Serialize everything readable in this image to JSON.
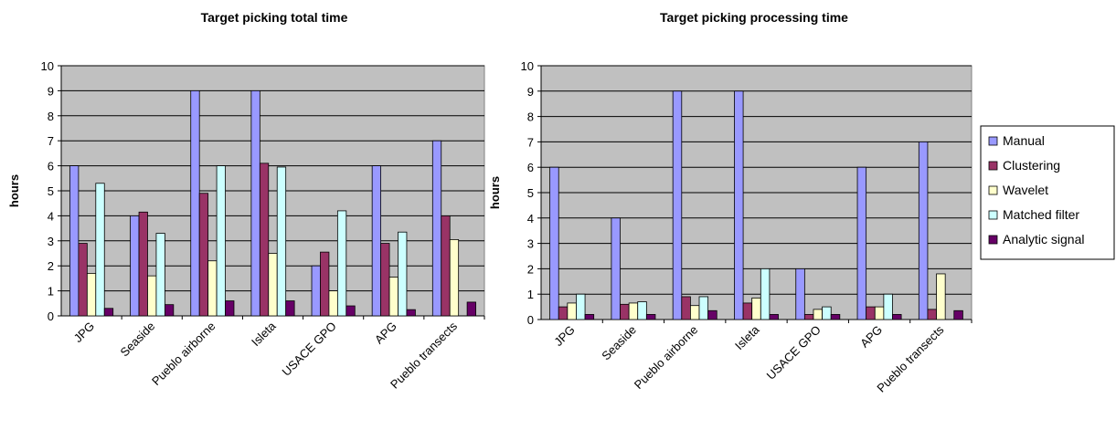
{
  "chart_data": [
    {
      "type": "bar",
      "title": "Target picking total time",
      "xlabel": "",
      "ylabel": "hours",
      "ylim": [
        0,
        10
      ],
      "yticks": [
        0,
        1,
        2,
        3,
        4,
        5,
        6,
        7,
        8,
        9,
        10
      ],
      "grid": true,
      "categories": [
        "JPG",
        "Seaside",
        "Pueblo airborne",
        "Isleta",
        "USACE GPO",
        "APG",
        "Pueblo transects"
      ],
      "series": [
        {
          "name": "Manual",
          "values": [
            6,
            4,
            9,
            9,
            2,
            6,
            7
          ]
        },
        {
          "name": "Clustering",
          "values": [
            2.9,
            4.15,
            4.9,
            6.1,
            2.55,
            2.9,
            4.0
          ]
        },
        {
          "name": "Wavelet",
          "values": [
            1.7,
            1.6,
            2.2,
            2.5,
            1.0,
            1.55,
            3.05
          ]
        },
        {
          "name": "Matched filter",
          "values": [
            5.3,
            3.3,
            6.0,
            5.95,
            4.2,
            3.35,
            0
          ]
        },
        {
          "name": "Analytic signal",
          "values": [
            0.3,
            0.45,
            0.6,
            0.6,
            0.4,
            0.25,
            0.55
          ]
        }
      ]
    },
    {
      "type": "bar",
      "title": "Target picking processing time",
      "xlabel": "",
      "ylabel": "hours",
      "ylim": [
        0,
        10
      ],
      "yticks": [
        0,
        1,
        2,
        3,
        4,
        5,
        6,
        7,
        8,
        9,
        10
      ],
      "grid": true,
      "legend": "right",
      "categories": [
        "JPG",
        "Seaside",
        "Pueblo airborne",
        "Isleta",
        "USACE GPO",
        "APG",
        "Pueblo transects"
      ],
      "series": [
        {
          "name": "Manual",
          "values": [
            6,
            4,
            9,
            9,
            2,
            6,
            7
          ]
        },
        {
          "name": "Clustering",
          "values": [
            0.5,
            0.6,
            0.9,
            0.65,
            0.2,
            0.5,
            0.4
          ]
        },
        {
          "name": "Wavelet",
          "values": [
            0.65,
            0.65,
            0.55,
            0.85,
            0.4,
            0.5,
            1.8
          ]
        },
        {
          "name": "Matched filter",
          "values": [
            1.0,
            0.7,
            0.9,
            2.0,
            0.5,
            1.0,
            0
          ]
        },
        {
          "name": "Analytic signal",
          "values": [
            0.2,
            0.2,
            0.35,
            0.2,
            0.2,
            0.2,
            0.35
          ]
        }
      ]
    }
  ],
  "colors": {
    "Manual": "#9999ff",
    "Clustering": "#993366",
    "Wavelet": "#ffffcc",
    "Matched filter": "#ccffff",
    "Analytic signal": "#660066",
    "plot_background": "#c0c0c0"
  },
  "legend": {
    "entries": [
      "Manual",
      "Clustering",
      "Wavelet",
      "Matched filter",
      "Analytic signal"
    ]
  }
}
